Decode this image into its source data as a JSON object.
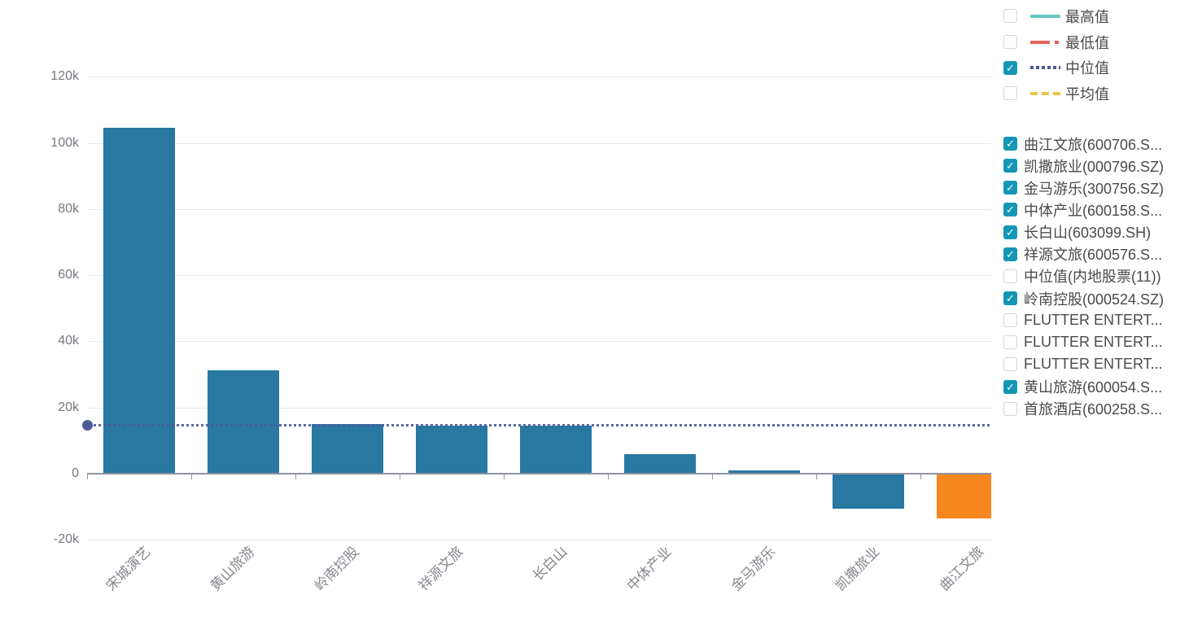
{
  "chart_data": {
    "type": "bar",
    "title": "",
    "xlabel": "",
    "ylabel": "",
    "categories": [
      "宋城演艺",
      "黄山旅游",
      "岭南控股",
      "祥源文旅",
      "长白山",
      "中体产业",
      "金马游乐",
      "凯撒旅业",
      "曲江文旅"
    ],
    "values": [
      104500,
      31200,
      15000,
      14500,
      14500,
      5900,
      900,
      -10400,
      -13400
    ],
    "bar_colors": [
      "#2878a2",
      "#2878a2",
      "#2878a2",
      "#2878a2",
      "#2878a2",
      "#2878a2",
      "#2878a2",
      "#2878a2",
      "#f5871e"
    ],
    "ylim": [
      -20000,
      120000
    ],
    "y_ticks": [
      "120k",
      "100k",
      "80k",
      "60k",
      "40k",
      "20k",
      "0",
      "-20k"
    ],
    "y_tick_values": [
      120000,
      100000,
      80000,
      60000,
      40000,
      20000,
      0,
      -20000
    ],
    "grid": true,
    "legend_position": "right",
    "reference_lines": [
      {
        "name": "中位值",
        "value": 14600,
        "color": "#4d5a99",
        "style": "dotted",
        "marker": "circle-at-left"
      }
    ]
  },
  "stat_legend": {
    "items": [
      {
        "key": "max",
        "label": "最高值",
        "checked": false,
        "color": "#62c5c2",
        "line_style": "solid"
      },
      {
        "key": "min",
        "label": "最低值",
        "checked": false,
        "color": "#e8625c",
        "line_style": "dash-dot"
      },
      {
        "key": "median",
        "label": "中位值",
        "checked": true,
        "color": "#4d5a99",
        "line_style": "dotted"
      },
      {
        "key": "mean",
        "label": "平均值",
        "checked": false,
        "color": "#e9c64a",
        "line_style": "dashed"
      }
    ]
  },
  "series_legend": {
    "items": [
      {
        "label": "曲江文旅(600706.S...",
        "checked": true
      },
      {
        "label": "凯撒旅业(000796.SZ)",
        "checked": true
      },
      {
        "label": "金马游乐(300756.SZ)",
        "checked": true
      },
      {
        "label": "中体产业(600158.S...",
        "checked": true
      },
      {
        "label": "长白山(603099.SH)",
        "checked": true
      },
      {
        "label": "祥源文旅(600576.S...",
        "checked": true
      },
      {
        "label": "中位值(内地股票(11))",
        "checked": false
      },
      {
        "label": "岭南控股(000524.SZ)",
        "checked": true
      },
      {
        "label": "FLUTTER ENTERT...",
        "checked": false
      },
      {
        "label": "FLUTTER ENTERT...",
        "checked": false
      },
      {
        "label": "FLUTTER ENTERT...",
        "checked": false
      },
      {
        "label": "黄山旅游(600054.S...",
        "checked": true
      },
      {
        "label": "首旅酒店(600258.S...",
        "checked": false
      }
    ]
  },
  "colors": {
    "bar_default": "#2878a2",
    "bar_highlight": "#f5871e",
    "median_line": "#4d5a99",
    "checkbox_checked": "#1496b4",
    "axis_line": "#8f949d",
    "gridline": "#e3e8f2"
  }
}
